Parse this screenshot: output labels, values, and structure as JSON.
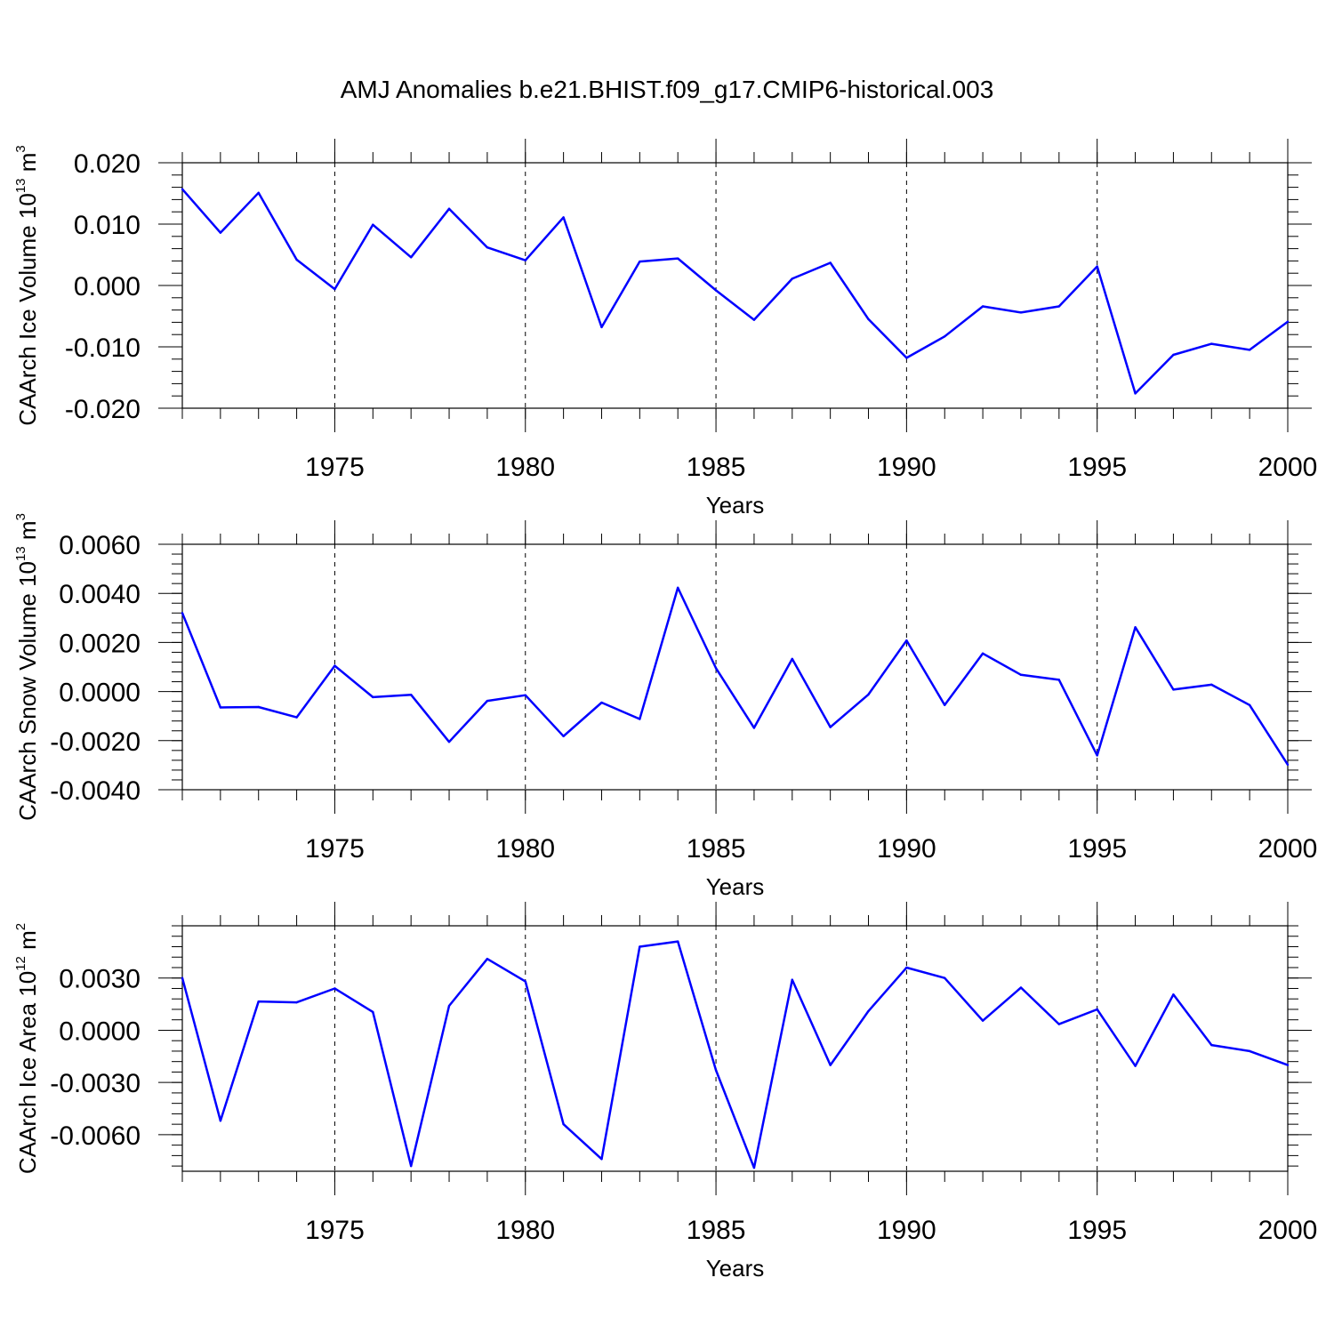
{
  "chart_data": [
    {
      "type": "line",
      "title": "AMJ Anomalies b.e21.BHIST.f09_g17.CMIP6-historical.003",
      "xlabel": "Years",
      "ylabel": {
        "base": "CAArch Ice Volume 10",
        "exp": "13",
        "unit": " m",
        "unit_exp": "3"
      },
      "xlim": [
        1971,
        2000
      ],
      "ylim": [
        -0.02,
        0.02
      ],
      "ytick_values": [
        0.02,
        0.01,
        0.0,
        -0.01,
        -0.02
      ],
      "ytick_labels": [
        "0.020",
        "0.010",
        "0.000",
        "-0.010",
        "-0.020"
      ],
      "xtick_values": [
        1975,
        1980,
        1985,
        1990,
        1995,
        2000
      ],
      "xtick_labels": [
        "1975",
        "1980",
        "1985",
        "1990",
        "1995",
        "2000"
      ],
      "line_color": "#0000ff",
      "x": [
        1971,
        1972,
        1973,
        1974,
        1975,
        1976,
        1977,
        1978,
        1979,
        1980,
        1981,
        1982,
        1983,
        1984,
        1985,
        1986,
        1987,
        1988,
        1989,
        1990,
        1991,
        1992,
        1993,
        1994,
        1995,
        1996,
        1997,
        1998,
        1999,
        2000
      ],
      "values": [
        0.0157,
        0.0086,
        0.0151,
        0.0042,
        -0.0006,
        0.0099,
        0.0046,
        0.0125,
        0.0062,
        0.0041,
        0.0111,
        -0.0068,
        0.0039,
        0.0044,
        -0.0008,
        -0.0056,
        0.0011,
        0.0037,
        -0.0055,
        -0.0118,
        -0.0083,
        -0.0034,
        -0.0044,
        -0.0034,
        0.0031,
        -0.0176,
        -0.0113,
        -0.0095,
        -0.0105,
        -0.0059
      ]
    },
    {
      "type": "line",
      "xlabel": "Years",
      "ylabel": {
        "base": "CAArch Snow Volume 10",
        "exp": "13",
        "unit": " m",
        "unit_exp": "3"
      },
      "xlim": [
        1971,
        2000
      ],
      "ylim": [
        -0.004,
        0.006
      ],
      "ytick_values": [
        0.006,
        0.004,
        0.002,
        0.0,
        -0.002,
        -0.004
      ],
      "ytick_labels": [
        "0.0060",
        "0.0040",
        "0.0020",
        "0.0000",
        "-0.0020",
        "-0.0040"
      ],
      "xtick_values": [
        1975,
        1980,
        1985,
        1990,
        1995,
        2000
      ],
      "xtick_labels": [
        "1975",
        "1980",
        "1985",
        "1990",
        "1995",
        "2000"
      ],
      "line_color": "#0000ff",
      "x": [
        1971,
        1972,
        1973,
        1974,
        1975,
        1976,
        1977,
        1978,
        1979,
        1980,
        1981,
        1982,
        1983,
        1984,
        1985,
        1986,
        1987,
        1988,
        1989,
        1990,
        1991,
        1992,
        1993,
        1994,
        1995,
        1996,
        1997,
        1998,
        1999,
        2000
      ],
      "values": [
        0.0032,
        -0.00065,
        -0.00063,
        -0.00105,
        0.00105,
        -0.00023,
        -0.00013,
        -0.00205,
        -0.00038,
        -0.00015,
        -0.00182,
        -0.00045,
        -0.00112,
        0.00423,
        0.00095,
        -0.00148,
        0.00133,
        -0.00145,
        -0.00012,
        0.00208,
        -0.00055,
        0.00155,
        0.00068,
        0.00048,
        -0.0026,
        0.00262,
        8e-05,
        0.00028,
        -0.00055,
        -0.00298
      ]
    },
    {
      "type": "line",
      "xlabel": "Years",
      "ylabel": {
        "base": "CAArch Ice Area 10",
        "exp": "12",
        "unit": " m",
        "unit_exp": "2"
      },
      "xlim": [
        1971,
        2000
      ],
      "ylim": [
        -0.0081,
        0.006
      ],
      "ytick_values": [
        0.003,
        0.0,
        -0.003,
        -0.006
      ],
      "ytick_labels": [
        "0.0030",
        "0.0000",
        "-0.0030",
        "-0.0060"
      ],
      "xtick_values": [
        1975,
        1980,
        1985,
        1990,
        1995,
        2000
      ],
      "xtick_labels": [
        "1975",
        "1980",
        "1985",
        "1990",
        "1995",
        "2000"
      ],
      "line_color": "#0000ff",
      "x": [
        1971,
        1972,
        1973,
        1974,
        1975,
        1976,
        1977,
        1978,
        1979,
        1980,
        1981,
        1982,
        1983,
        1984,
        1985,
        1986,
        1987,
        1988,
        1989,
        1990,
        1991,
        1992,
        1993,
        1994,
        1995,
        1996,
        1997,
        1998,
        1999,
        2000
      ],
      "values": [
        0.003,
        -0.0052,
        0.00165,
        0.0016,
        0.0024,
        0.00105,
        -0.0078,
        0.0014,
        0.0041,
        0.0028,
        -0.0054,
        -0.0074,
        0.0048,
        0.0051,
        -0.0023,
        -0.0079,
        0.0029,
        -0.002,
        0.0011,
        0.0036,
        0.003,
        0.00055,
        0.00245,
        0.00035,
        0.0012,
        -0.00205,
        0.00205,
        -0.00085,
        -0.0012,
        -0.002
      ]
    }
  ]
}
